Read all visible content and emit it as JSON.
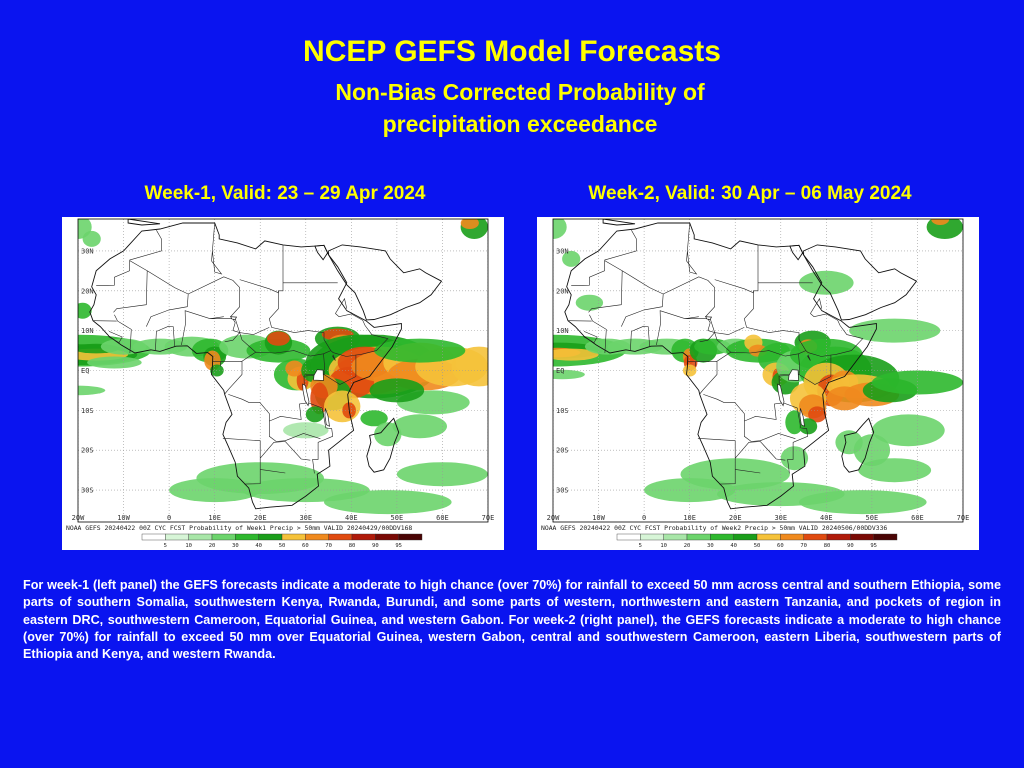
{
  "header": {
    "title": "NCEP GEFS Model Forecasts",
    "subtitle_line1": "Non-Bias Corrected Probability of",
    "subtitle_line2": "precipitation exceedance"
  },
  "panels": [
    {
      "heading": "Week-1, Valid: 23 – 29 Apr 2024",
      "footer_text": "NOAA GEFS 20240422 00Z CYC FCST Probability of Week1 Precip > 50mm  VALID 20240429/00DDV168"
    },
    {
      "heading": "Week-2, Valid:  30 Apr – 06 May 2024",
      "footer_text": "NOAA GEFS 20240422 00Z CYC FCST Probability of Week2 Precip > 50mm  VALID 20240506/00DDV336"
    }
  ],
  "map_axes": {
    "lat_labels": [
      "30N",
      "20N",
      "10N",
      "EQ",
      "10S",
      "20S",
      "30S"
    ],
    "lon_labels": [
      "20W",
      "10W",
      "0",
      "10E",
      "20E",
      "30E",
      "40E",
      "50E",
      "60E",
      "70E"
    ]
  },
  "colorbar": {
    "labels": [
      "5",
      "10",
      "20",
      "30",
      "40",
      "50",
      "60",
      "70",
      "80",
      "90",
      "95"
    ],
    "colors": [
      "#ffffff",
      "#d7f5d7",
      "#a8e6a8",
      "#6cd46c",
      "#2eb82e",
      "#1a9e1a",
      "#f5c23a",
      "#f08a1e",
      "#e04a10",
      "#b01a0a",
      "#7a0a05",
      "#4a0505"
    ]
  },
  "caption": "For week-1 (left panel) the GEFS forecasts indicate a moderate to high chance (over 70%) for rainfall to exceed 50 mm across central and southern Ethiopia, some parts of southern Somalia, southwestern Kenya, Rwanda, Burundi, and some parts of western, northwestern and eastern Tanzania, and pockets of region in eastern DRC, southwestern Cameroon, Equatorial Guinea,  and western Gabon. For week-2 (right panel), the GEFS forecasts indicate a moderate to high chance (over 70%) for rainfall to exceed 50 mm over Equatorial Guinea, western Gabon, central and southwestern Cameroon, eastern Liberia, southwestern parts of Ethiopia and Kenya, and western Rwanda."
}
